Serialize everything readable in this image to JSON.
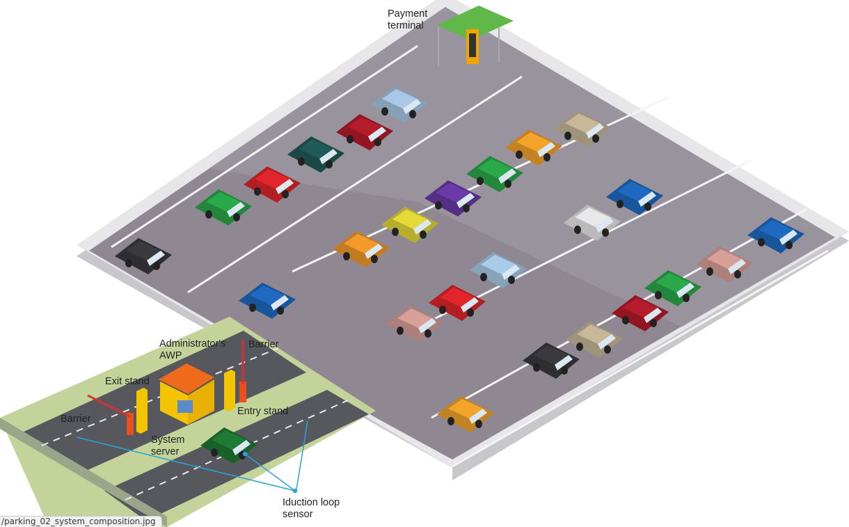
{
  "labels": {
    "payment_terminal": "Payment\nterminal",
    "administrators_awp": "Administrator's\nAWP",
    "barrier_entry": "Barrier",
    "exit_stand": "Exit stand",
    "entry_stand": "Entry stand",
    "barrier_exit": "Barrier",
    "system_server": "System\nserver",
    "induction_loop_sensor": "Iduction loop\nsensor"
  },
  "file_tab": "/parking_02_system_composition.jpg",
  "colors": {
    "lot_surface": "#8f8792",
    "lot_border": "#e6e6e8",
    "grass": "#c6d59e",
    "road": "#54565c",
    "booth": "#f5c400",
    "booth_roof": "#f06a1c",
    "stand": "#f2c500",
    "barrier_box": "#e8501c",
    "pointer": "#2aa3d8",
    "canopy": "#62b84a"
  },
  "cars": [
    {
      "color": "#a9c8e6"
    },
    {
      "color": "#b51c2b"
    },
    {
      "color": "#1f5a58"
    },
    {
      "color": "#e0252c"
    },
    {
      "color": "#2aa94a"
    },
    {
      "color": "#3a3a3e"
    },
    {
      "color": "#c8b89a"
    },
    {
      "color": "#f4a42a"
    },
    {
      "color": "#2aa94a"
    },
    {
      "color": "#6a3aa8"
    },
    {
      "color": "#e6d93a"
    },
    {
      "color": "#f49a2a"
    },
    {
      "color": "#1f6ac0"
    },
    {
      "color": "#e8e8ea"
    },
    {
      "color": "#1f6ac0"
    },
    {
      "color": "#a9cce8"
    },
    {
      "color": "#e0252c"
    },
    {
      "color": "#d9a09a"
    },
    {
      "color": "#d9a09a"
    },
    {
      "color": "#2aa94a"
    },
    {
      "color": "#b51c2b"
    },
    {
      "color": "#c8b89a"
    },
    {
      "color": "#3a3a3e"
    },
    {
      "color": "#f4a42a"
    },
    {
      "color": "#1f6ac0"
    },
    {
      "color": "#1e7a34"
    }
  ]
}
